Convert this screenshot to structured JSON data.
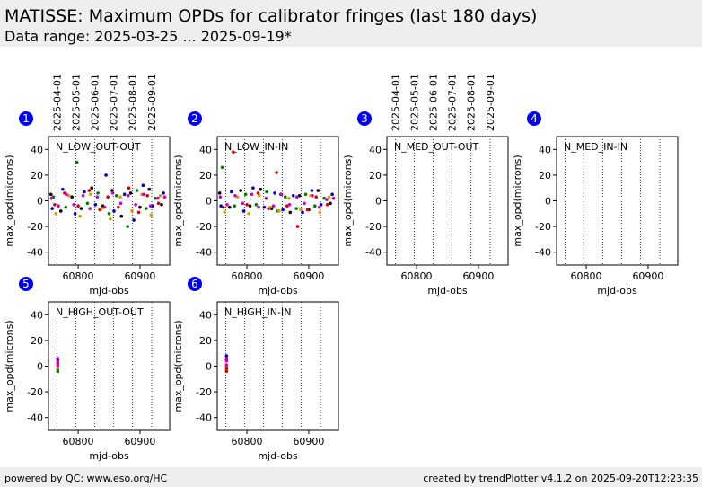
{
  "header": {
    "title": "MATISSE: Maximum OPDs for calibrator fringes (last 180 days)",
    "subtitle": "Data range: 2025-03-25 ... 2025-09-19*"
  },
  "footer": {
    "left": "powered by QC: www.eso.org/HC",
    "right": "created by trendPlotter v4.1.2 on 2025-09-20T12:23:35"
  },
  "chart_data": [
    {
      "type": "scatter",
      "number": "1",
      "title": "N_LOW_OUT-OUT",
      "xlabel": "mjd-obs",
      "ylabel": "max_opd(microns)",
      "xlim": [
        60752,
        60948
      ],
      "xticks": [
        60800,
        60900
      ],
      "ylim": [
        -50,
        50
      ],
      "yticks": [
        -40,
        -20,
        0,
        20,
        40
      ],
      "x2ticks": [
        {
          "value": 60766,
          "label": "2025-04-01"
        },
        {
          "value": 60796,
          "label": "2025-05-01"
        },
        {
          "value": 60827,
          "label": "2025-06-01"
        },
        {
          "value": 60857,
          "label": "2025-07-01"
        },
        {
          "value": 60888,
          "label": "2025-08-01"
        },
        {
          "value": 60919,
          "label": "2025-09-01"
        }
      ],
      "series": [
        {
          "color": "#000000",
          "x": [
            60756,
            60772,
            60790,
            60805,
            60822,
            60840,
            60855,
            60870,
            60885,
            60900,
            60915,
            60935
          ],
          "values": [
            5,
            -8,
            3,
            -6,
            10,
            -4,
            8,
            -12,
            6,
            -5,
            9,
            -3
          ]
        },
        {
          "color": "#0000cc",
          "x": [
            60758,
            60775,
            60795,
            60810,
            60828,
            60845,
            60858,
            60875,
            60890,
            60905,
            60920,
            60938
          ],
          "values": [
            -6,
            9,
            -10,
            7,
            -3,
            20,
            -8,
            5,
            -15,
            12,
            -4,
            6
          ]
        },
        {
          "color": "#008000",
          "x": [
            60760,
            60780,
            60798,
            60815,
            60832,
            60850,
            60862,
            60880,
            60895,
            60910,
            60925
          ],
          "values": [
            3,
            -5,
            30,
            -2,
            6,
            -10,
            4,
            -20,
            8,
            -6,
            2
          ]
        },
        {
          "color": "#e00000",
          "x": [
            60762,
            60778,
            60800,
            60818,
            60835,
            60848,
            60865,
            60882,
            60898,
            60912,
            60930
          ],
          "values": [
            -3,
            6,
            -4,
            8,
            -7,
            3,
            -5,
            10,
            -9,
            4,
            -2
          ]
        },
        {
          "color": "#d4a000",
          "x": [
            60764,
            60785,
            60803,
            60820,
            60838,
            60852,
            60868,
            60887,
            60903,
            60918,
            60933
          ],
          "values": [
            -10,
            4,
            -12,
            5,
            -6,
            -14,
            3,
            -8,
            5,
            -11,
            4
          ]
        },
        {
          "color": "#cc00cc",
          "x": [
            60757,
            60768,
            60781,
            60793,
            60808,
            60819,
            60831,
            60843,
            60856,
            60869,
            60881,
            60893,
            60906,
            60917,
            60929,
            60940
          ],
          "values": [
            2,
            -4,
            5,
            -3,
            4,
            -6,
            3,
            -5,
            6,
            -2,
            4,
            -3,
            5,
            -4,
            2,
            3
          ]
        }
      ]
    },
    {
      "type": "scatter",
      "number": "2",
      "title": "N_LOW_IN-IN",
      "xlabel": "mjd-obs",
      "ylabel": "max_opd(microns)",
      "xlim": [
        60752,
        60948
      ],
      "xticks": [
        60800,
        60900
      ],
      "ylim": [
        -50,
        50
      ],
      "yticks": [
        -40,
        -20,
        0,
        20,
        40
      ],
      "vlines": [
        60766,
        60796,
        60827,
        60857,
        60888,
        60919
      ],
      "series": [
        {
          "color": "#000000",
          "x": [
            60756,
            60772,
            60790,
            60805,
            60822,
            60840,
            60855,
            60870,
            60885,
            60900,
            60915,
            60935
          ],
          "values": [
            6,
            -5,
            8,
            -4,
            9,
            -6,
            5,
            -9,
            4,
            -7,
            8,
            -2
          ]
        },
        {
          "color": "#0000cc",
          "x": [
            60758,
            60775,
            60795,
            60810,
            60828,
            60845,
            60858,
            60875,
            60890,
            60905,
            60920,
            60938
          ],
          "values": [
            -4,
            7,
            -8,
            10,
            -5,
            6,
            -7,
            4,
            -9,
            8,
            -3,
            5
          ]
        },
        {
          "color": "#008000",
          "x": [
            60760,
            60780,
            60798,
            60815,
            60832,
            60850,
            60862,
            60880,
            60895,
            60910,
            60925
          ],
          "values": [
            26,
            -4,
            5,
            -3,
            7,
            -8,
            3,
            -6,
            5,
            -4,
            2
          ]
        },
        {
          "color": "#e00000",
          "x": [
            60762,
            60778,
            60800,
            60818,
            60835,
            60848,
            60865,
            60882,
            60898,
            60912,
            60930
          ],
          "values": [
            -5,
            38,
            -3,
            6,
            -6,
            22,
            -4,
            -20,
            -7,
            3,
            -3
          ]
        },
        {
          "color": "#d4a000",
          "x": [
            60764,
            60785,
            60803,
            60820,
            60838,
            60852,
            60868,
            60887,
            60903,
            60918,
            60933
          ],
          "values": [
            -9,
            3,
            -10,
            4,
            -5,
            -8,
            2,
            -7,
            4,
            -9,
            3
          ]
        },
        {
          "color": "#cc00cc",
          "x": [
            60757,
            60768,
            60781,
            60793,
            60808,
            60819,
            60831,
            60843,
            60856,
            60869,
            60881,
            60893,
            60906,
            60917,
            60929,
            60940
          ],
          "values": [
            3,
            -3,
            4,
            -2,
            5,
            -5,
            2,
            -4,
            5,
            -3,
            3,
            -2,
            4,
            -5,
            1,
            2
          ]
        }
      ]
    },
    {
      "type": "scatter",
      "number": "3",
      "title": "N_MED_OUT-OUT",
      "xlabel": "mjd-obs",
      "ylabel": "max_opd(microns)",
      "xlim": [
        60752,
        60948
      ],
      "xticks": [
        60800,
        60900
      ],
      "ylim": [
        -50,
        50
      ],
      "yticks": [
        -40,
        -20,
        0,
        20,
        40
      ],
      "x2ticks": [
        {
          "value": 60766,
          "label": "2025-04-01"
        },
        {
          "value": 60796,
          "label": "2025-05-01"
        },
        {
          "value": 60827,
          "label": "2025-06-01"
        },
        {
          "value": 60857,
          "label": "2025-07-01"
        },
        {
          "value": 60888,
          "label": "2025-08-01"
        },
        {
          "value": 60919,
          "label": "2025-09-01"
        }
      ],
      "series": []
    },
    {
      "type": "scatter",
      "number": "4",
      "title": "N_MED_IN-IN",
      "xlabel": "mjd-obs",
      "ylabel": "max_opd(microns)",
      "xlim": [
        60752,
        60948
      ],
      "xticks": [
        60800,
        60900
      ],
      "ylim": [
        -50,
        50
      ],
      "yticks": [
        -40,
        -20,
        0,
        20,
        40
      ],
      "vlines": [
        60766,
        60796,
        60827,
        60857,
        60888,
        60919
      ],
      "series": []
    },
    {
      "type": "scatter",
      "number": "5",
      "title": "N_HIGH_OUT-OUT",
      "xlabel": "mjd-obs",
      "ylabel": "max_opd(microns)",
      "xlim": [
        60752,
        60948
      ],
      "xticks": [
        60800,
        60900
      ],
      "ylim": [
        -50,
        50
      ],
      "yticks": [
        -40,
        -20,
        0,
        20,
        40
      ],
      "vlines": [
        60766,
        60796,
        60827,
        60857,
        60888,
        60919
      ],
      "series": [
        {
          "color": "#0000cc",
          "x": [
            60767
          ],
          "values": [
            5
          ]
        },
        {
          "color": "#008000",
          "x": [
            60767,
            60767
          ],
          "values": [
            -2,
            -4
          ]
        },
        {
          "color": "#e00000",
          "x": [
            60767
          ],
          "values": [
            2
          ]
        },
        {
          "color": "#d4a000",
          "x": [
            60767
          ],
          "values": [
            -1
          ]
        },
        {
          "color": "#cc00cc",
          "x": [
            60767,
            60767,
            60767
          ],
          "values": [
            6,
            3,
            0
          ]
        }
      ]
    },
    {
      "type": "scatter",
      "number": "6",
      "title": "N_HIGH_IN-IN",
      "xlabel": "mjd-obs",
      "ylabel": "max_opd(microns)",
      "xlim": [
        60752,
        60948
      ],
      "xticks": [
        60800,
        60900
      ],
      "ylim": [
        -50,
        50
      ],
      "yticks": [
        -40,
        -20,
        0,
        20,
        40
      ],
      "vlines": [
        60766,
        60796,
        60827,
        60857,
        60888,
        60919
      ],
      "series": [
        {
          "color": "#0000cc",
          "x": [
            60767,
            60767
          ],
          "values": [
            8,
            5
          ]
        },
        {
          "color": "#e00000",
          "x": [
            60767,
            60767
          ],
          "values": [
            -2,
            -4
          ]
        },
        {
          "color": "#d4a000",
          "x": [
            60767
          ],
          "values": [
            0
          ]
        },
        {
          "color": "#cc00cc",
          "x": [
            60767,
            60767,
            60767
          ],
          "values": [
            4,
            1,
            6
          ]
        }
      ]
    }
  ]
}
